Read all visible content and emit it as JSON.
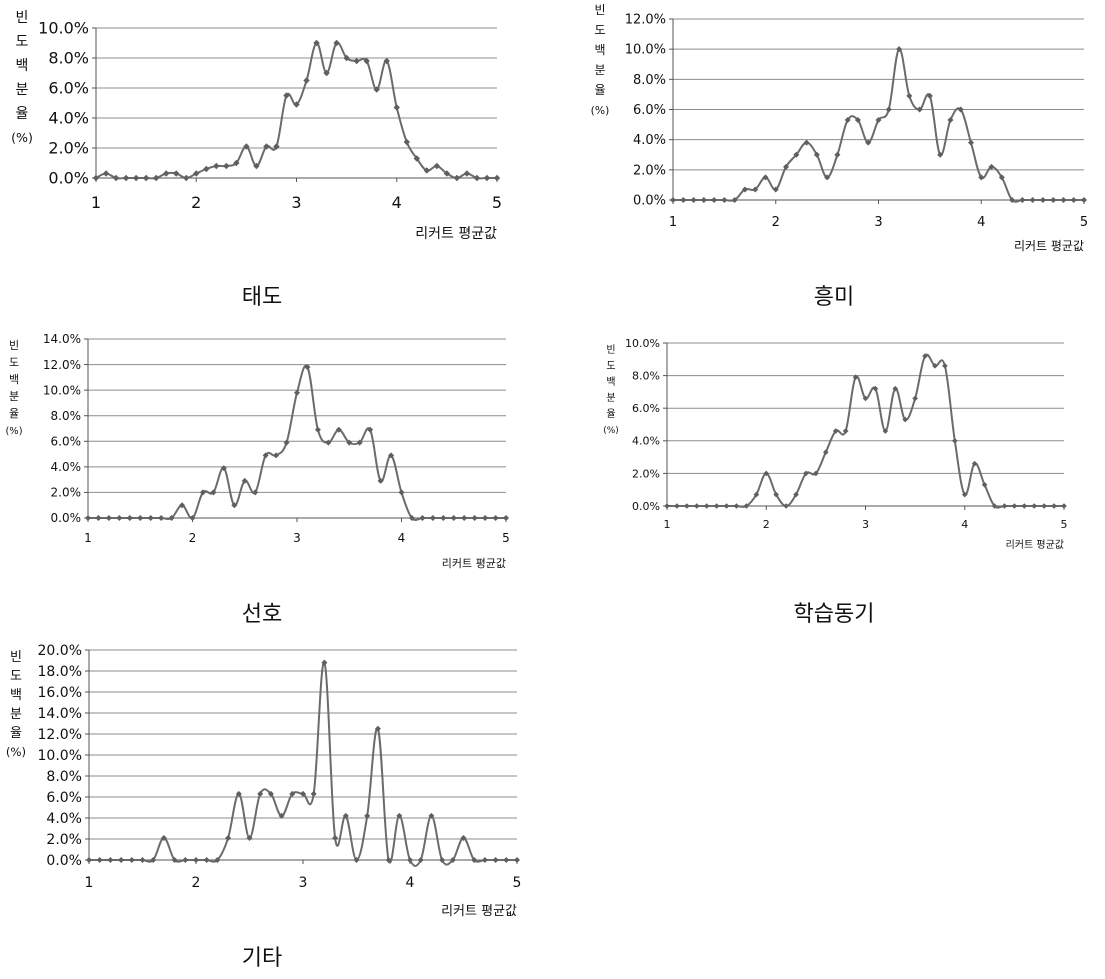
{
  "figure": {
    "y_axis_label_chars": [
      "빈",
      "도",
      "백",
      "분",
      "율",
      "(%)"
    ],
    "x_axis_label": "리커트 평균값",
    "line_color": "#6b6b6b",
    "marker_color": "#5f5f5f",
    "grid_color": "#8c8c8c"
  },
  "chart_data": [
    {
      "type": "line",
      "title": "태도",
      "xlabel": "리커트 평균값",
      "ylabel": "빈도백분율(%)",
      "xlim": [
        1,
        5
      ],
      "ylim": [
        0,
        10
      ],
      "x_ticks": [
        "1",
        "2",
        "3",
        "4",
        "5"
      ],
      "y_ticks": [
        "0.0%",
        "2.0%",
        "4.0%",
        "6.0%",
        "8.0%",
        "10.0%"
      ],
      "x": [
        1.0,
        1.1,
        1.2,
        1.3,
        1.4,
        1.5,
        1.6,
        1.7,
        1.8,
        1.9,
        2.0,
        2.1,
        2.2,
        2.3,
        2.4,
        2.5,
        2.6,
        2.7,
        2.8,
        2.9,
        3.0,
        3.1,
        3.2,
        3.3,
        3.4,
        3.5,
        3.6,
        3.7,
        3.8,
        3.9,
        4.0,
        4.1,
        4.2,
        4.3,
        4.4,
        4.5,
        4.6,
        4.7,
        4.8,
        4.9,
        5.0
      ],
      "values": [
        0.0,
        0.3,
        0.0,
        0.0,
        0.0,
        0.0,
        0.0,
        0.3,
        0.3,
        0.0,
        0.3,
        0.6,
        0.8,
        0.8,
        1.0,
        2.1,
        0.8,
        2.1,
        2.1,
        5.5,
        4.9,
        6.5,
        9.0,
        7.0,
        9.0,
        8.0,
        7.8,
        7.8,
        5.9,
        7.8,
        4.7,
        2.4,
        1.3,
        0.5,
        0.8,
        0.3,
        0.0,
        0.3,
        0.0,
        0.0,
        0.0
      ]
    },
    {
      "type": "line",
      "title": "흥미",
      "xlabel": "리커트 평균값",
      "ylabel": "빈도백분율(%)",
      "xlim": [
        1,
        5
      ],
      "ylim": [
        0,
        12
      ],
      "x_ticks": [
        "1",
        "2",
        "3",
        "4",
        "5"
      ],
      "y_ticks": [
        "0.0%",
        "2.0%",
        "4.0%",
        "6.0%",
        "8.0%",
        "10.0%",
        "12.0%"
      ],
      "x": [
        1.0,
        1.1,
        1.2,
        1.3,
        1.4,
        1.5,
        1.6,
        1.7,
        1.8,
        1.9,
        2.0,
        2.1,
        2.2,
        2.3,
        2.4,
        2.5,
        2.6,
        2.7,
        2.8,
        2.9,
        3.0,
        3.1,
        3.2,
        3.3,
        3.4,
        3.5,
        3.6,
        3.7,
        3.8,
        3.9,
        4.0,
        4.1,
        4.2,
        4.3,
        4.4,
        4.5,
        4.6,
        4.7,
        4.8,
        4.9,
        5.0
      ],
      "values": [
        0.0,
        0.0,
        0.0,
        0.0,
        0.0,
        0.0,
        0.0,
        0.7,
        0.7,
        1.5,
        0.7,
        2.2,
        3.0,
        3.8,
        3.0,
        1.5,
        3.0,
        5.3,
        5.3,
        3.8,
        5.3,
        6.0,
        10.0,
        6.9,
        6.0,
        6.9,
        3.0,
        5.3,
        6.0,
        3.8,
        1.5,
        2.2,
        1.5,
        0.0,
        0.0,
        0.0,
        0.0,
        0.0,
        0.0,
        0.0,
        0.0
      ]
    },
    {
      "type": "line",
      "title": "선호",
      "xlabel": "리커트 평균값",
      "ylabel": "빈도백분율(%)",
      "xlim": [
        1,
        5
      ],
      "ylim": [
        0,
        14
      ],
      "x_ticks": [
        "1",
        "2",
        "3",
        "4",
        "5"
      ],
      "y_ticks": [
        "0.0%",
        "2.0%",
        "4.0%",
        "6.0%",
        "8.0%",
        "10.0%",
        "12.0%",
        "14.0%"
      ],
      "x": [
        1.0,
        1.1,
        1.2,
        1.3,
        1.4,
        1.5,
        1.6,
        1.7,
        1.8,
        1.9,
        2.0,
        2.1,
        2.2,
        2.3,
        2.4,
        2.5,
        2.6,
        2.7,
        2.8,
        2.9,
        3.0,
        3.1,
        3.2,
        3.3,
        3.4,
        3.5,
        3.6,
        3.7,
        3.8,
        3.9,
        4.0,
        4.1,
        4.2,
        4.3,
        4.4,
        4.5,
        4.6,
        4.7,
        4.8,
        4.9,
        5.0
      ],
      "values": [
        0.0,
        0.0,
        0.0,
        0.0,
        0.0,
        0.0,
        0.0,
        0.0,
        0.0,
        1.0,
        0.0,
        2.0,
        2.0,
        3.9,
        1.0,
        2.9,
        2.0,
        4.9,
        4.9,
        5.9,
        9.8,
        11.8,
        6.9,
        5.9,
        6.9,
        5.9,
        5.9,
        6.9,
        2.9,
        4.9,
        2.0,
        0.0,
        0.0,
        0.0,
        0.0,
        0.0,
        0.0,
        0.0,
        0.0,
        0.0,
        0.0
      ]
    },
    {
      "type": "line",
      "title": "학습동기",
      "xlabel": "리커트 평균값",
      "ylabel": "빈도백분율(%)",
      "xlim": [
        1,
        5
      ],
      "ylim": [
        0,
        10
      ],
      "x_ticks": [
        "1",
        "2",
        "3",
        "4",
        "5"
      ],
      "y_ticks": [
        "0.0%",
        "2.0%",
        "4.0%",
        "6.0%",
        "8.0%",
        "10.0%"
      ],
      "x": [
        1.0,
        1.1,
        1.2,
        1.3,
        1.4,
        1.5,
        1.6,
        1.7,
        1.8,
        1.9,
        2.0,
        2.1,
        2.2,
        2.3,
        2.4,
        2.5,
        2.6,
        2.7,
        2.8,
        2.9,
        3.0,
        3.1,
        3.2,
        3.3,
        3.4,
        3.5,
        3.6,
        3.7,
        3.8,
        3.9,
        4.0,
        4.1,
        4.2,
        4.3,
        4.4,
        4.5,
        4.6,
        4.7,
        4.8,
        4.9,
        5.0
      ],
      "values": [
        0.0,
        0.0,
        0.0,
        0.0,
        0.0,
        0.0,
        0.0,
        0.0,
        0.0,
        0.7,
        2.0,
        0.7,
        0.0,
        0.7,
        2.0,
        2.0,
        3.3,
        4.6,
        4.6,
        7.9,
        6.6,
        7.2,
        4.6,
        7.2,
        5.3,
        6.6,
        9.2,
        8.6,
        8.6,
        4.0,
        0.7,
        2.6,
        1.3,
        0.0,
        0.0,
        0.0,
        0.0,
        0.0,
        0.0,
        0.0,
        0.0
      ]
    },
    {
      "type": "line",
      "title": "기타",
      "xlabel": "리커트 평균값",
      "ylabel": "빈도백분율(%)",
      "xlim": [
        1,
        5
      ],
      "ylim": [
        0,
        20
      ],
      "x_ticks": [
        "1",
        "2",
        "3",
        "4",
        "5"
      ],
      "y_ticks": [
        "0.0%",
        "2.0%",
        "4.0%",
        "6.0%",
        "8.0%",
        "10.0%",
        "12.0%",
        "14.0%",
        "16.0%",
        "18.0%",
        "20.0%"
      ],
      "x": [
        1.0,
        1.1,
        1.2,
        1.3,
        1.4,
        1.5,
        1.6,
        1.7,
        1.8,
        1.9,
        2.0,
        2.1,
        2.2,
        2.3,
        2.4,
        2.5,
        2.6,
        2.7,
        2.8,
        2.9,
        3.0,
        3.1,
        3.2,
        3.3,
        3.4,
        3.5,
        3.6,
        3.7,
        3.8,
        3.9,
        4.0,
        4.1,
        4.2,
        4.3,
        4.4,
        4.5,
        4.6,
        4.7,
        4.8,
        4.9,
        5.0
      ],
      "values": [
        0.0,
        0.0,
        0.0,
        0.0,
        0.0,
        0.0,
        0.0,
        2.1,
        0.0,
        0.0,
        0.0,
        0.0,
        0.0,
        2.1,
        6.3,
        2.1,
        6.3,
        6.3,
        4.2,
        6.3,
        6.3,
        6.3,
        18.8,
        2.1,
        4.2,
        0.0,
        4.2,
        12.5,
        0.0,
        4.2,
        0.0,
        0.0,
        4.2,
        0.0,
        0.0,
        2.1,
        0.0,
        0.0,
        0.0,
        0.0,
        0.0
      ]
    }
  ]
}
